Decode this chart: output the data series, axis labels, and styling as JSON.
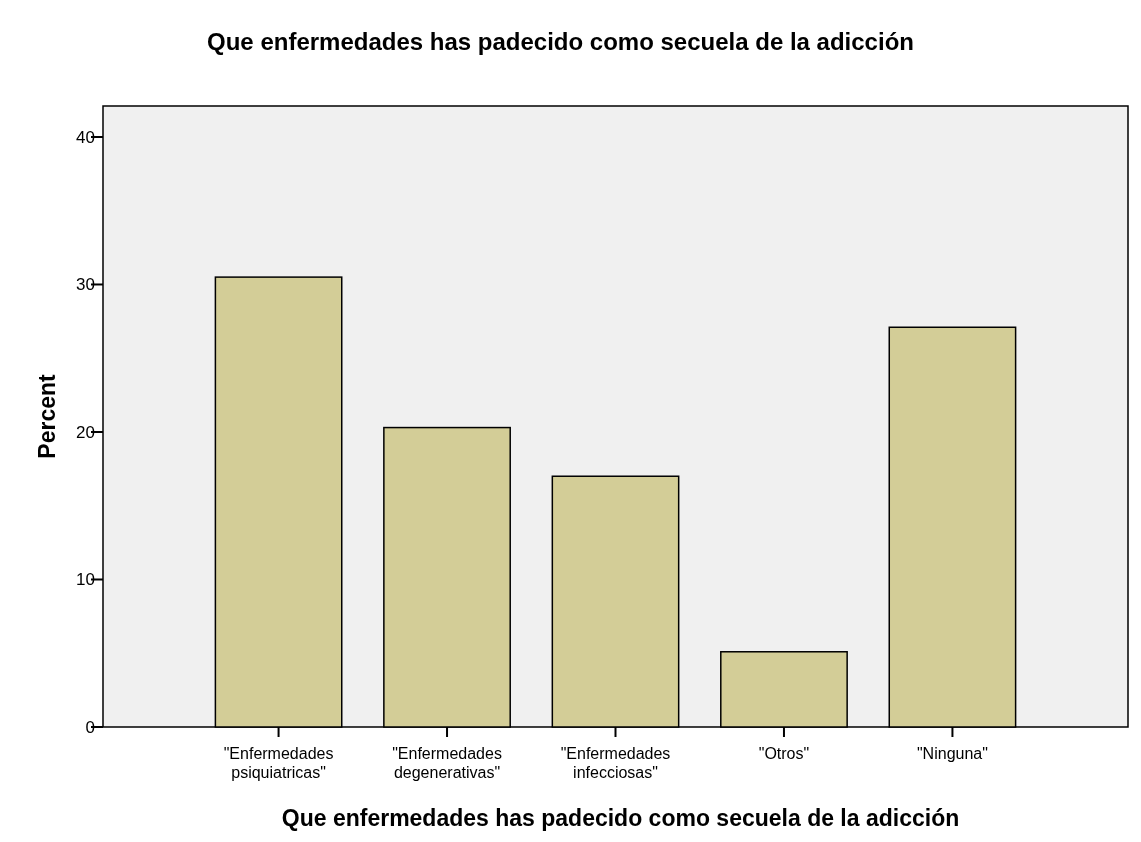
{
  "chart_data": {
    "type": "bar",
    "title": "Que enfermedades has padecido como secuela de la adicción",
    "xlabel": "Que enfermedades has padecido como secuela de la adicción",
    "ylabel": "Percent",
    "categories": [
      "\"Enfermedades psiquiatricas\"",
      "\"Enfermedades degenerativas\"",
      "\"Enfermedades infecciosas\"",
      "\"Otros\"",
      "\"Ninguna\""
    ],
    "values": [
      30.5,
      20.3,
      17.0,
      5.1,
      27.1
    ],
    "color": "#d3cd97",
    "ylim": [
      0,
      42.1
    ],
    "yticks": [
      0,
      10,
      20,
      30,
      40
    ],
    "grid": false
  }
}
